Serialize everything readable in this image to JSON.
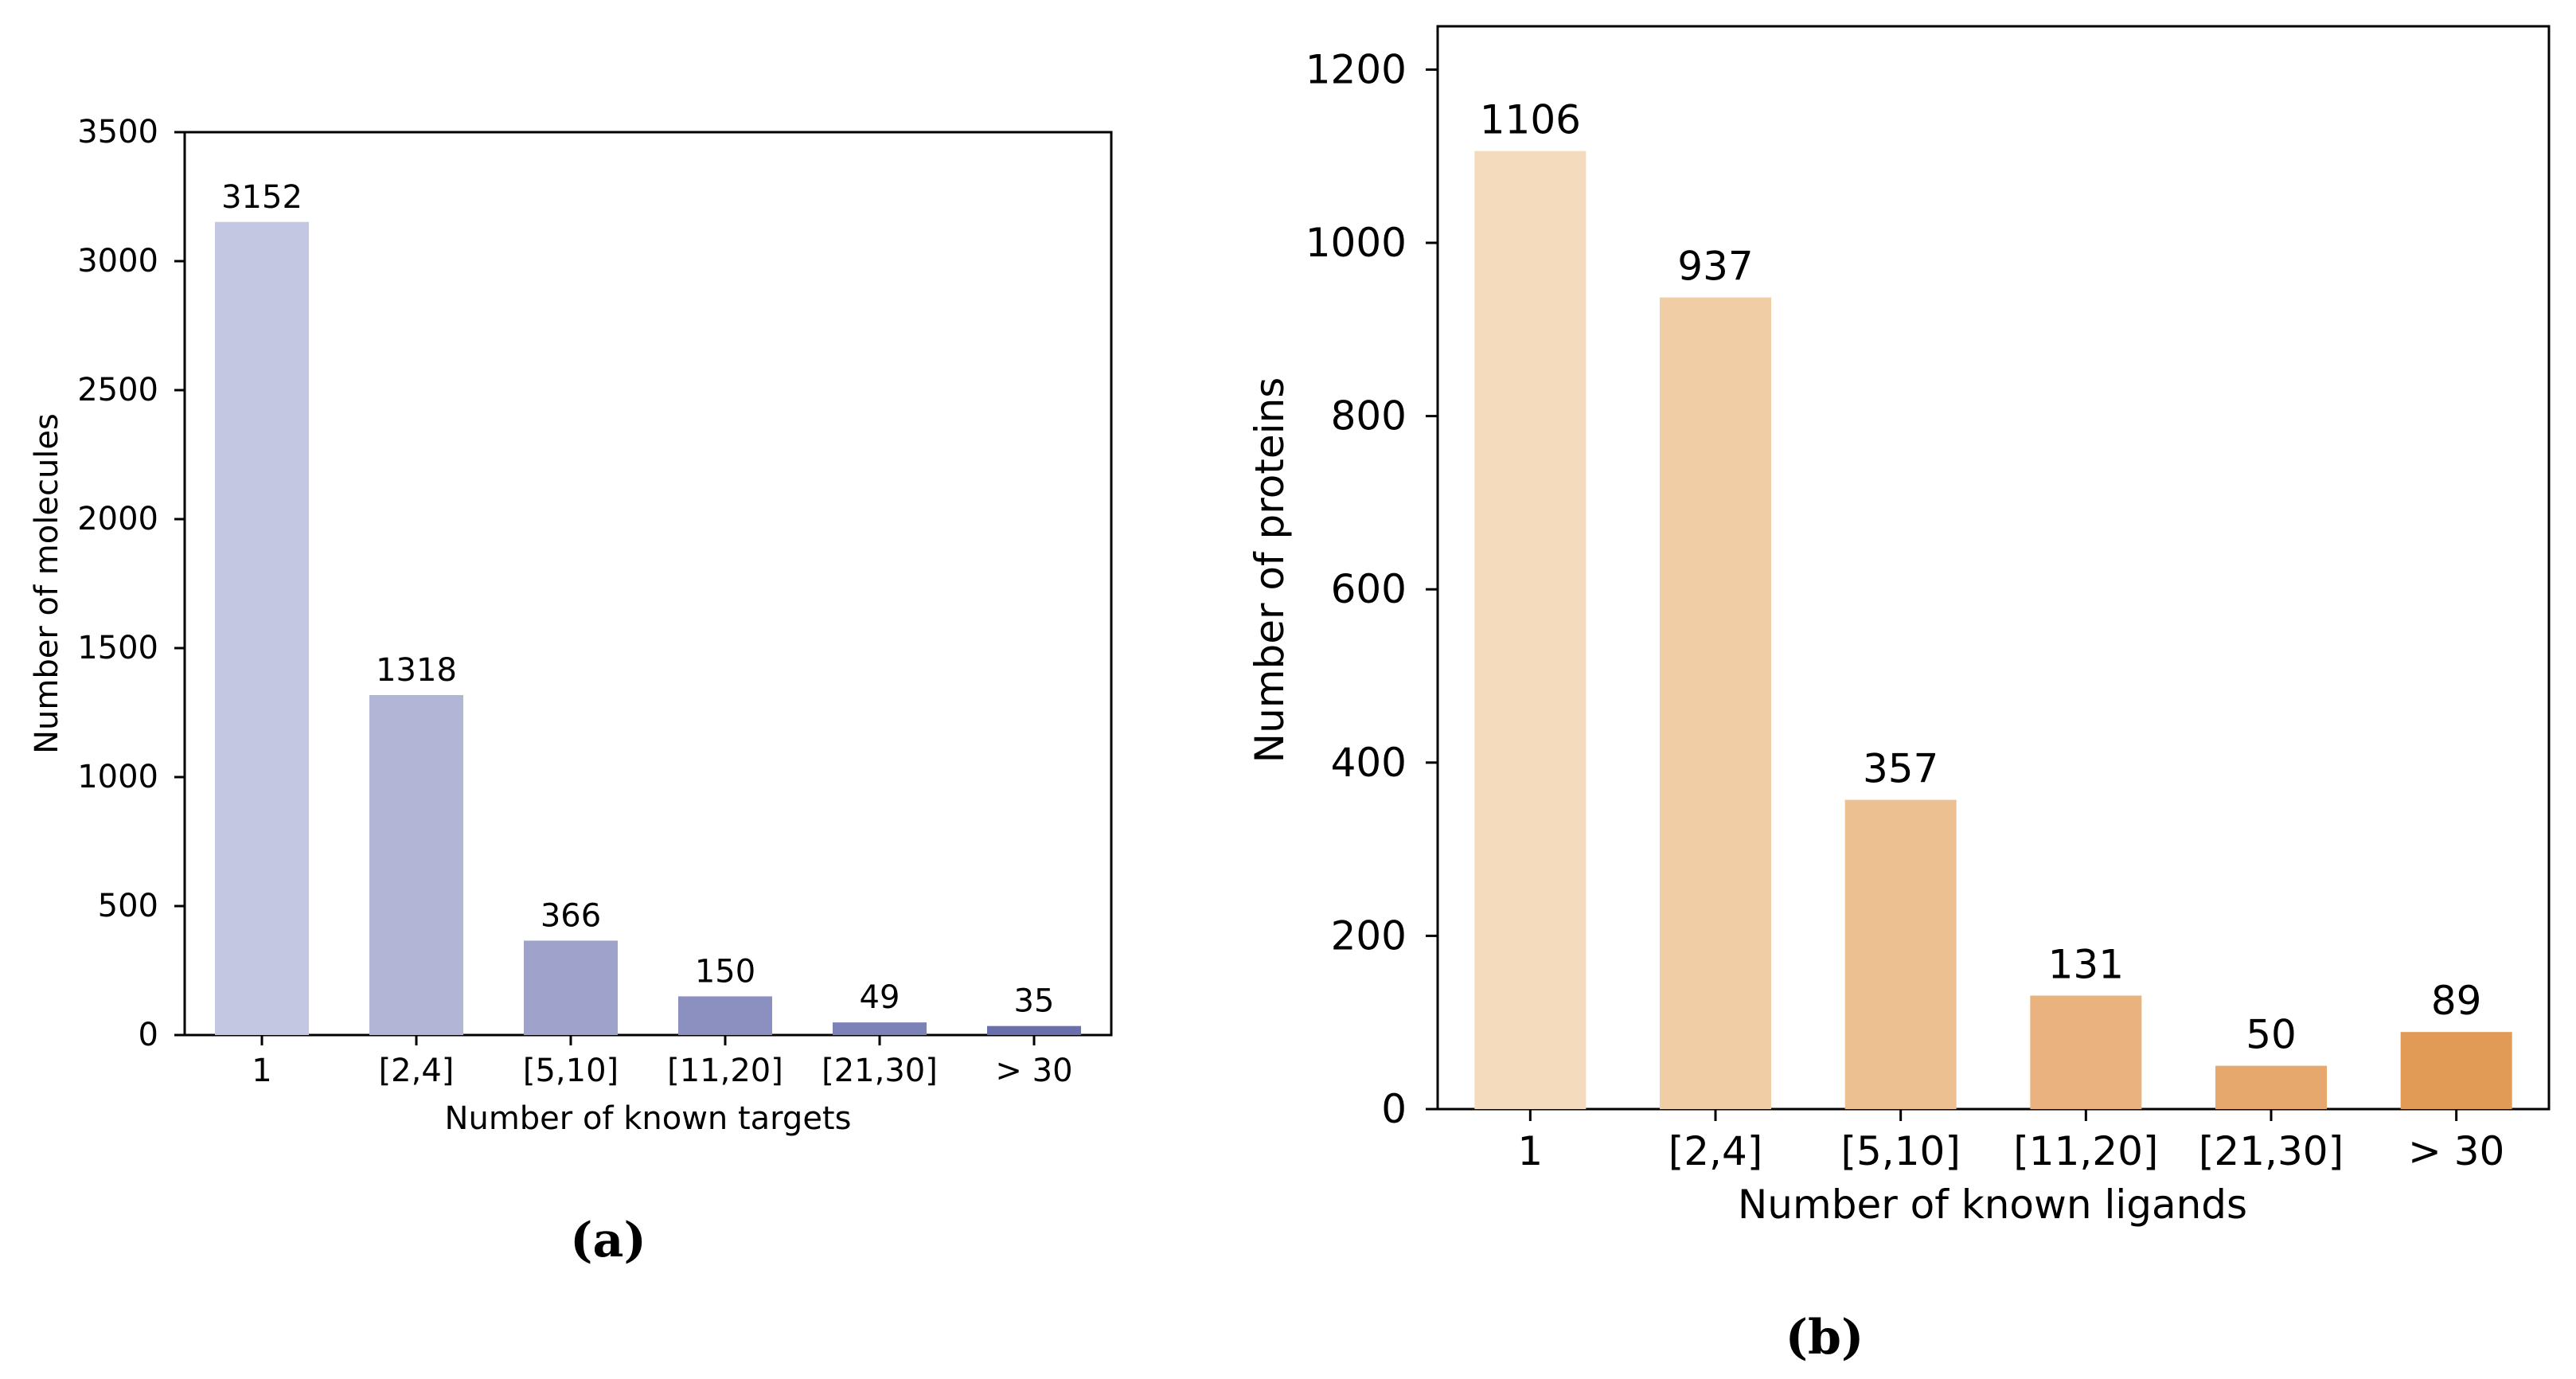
{
  "chart_data": [
    {
      "type": "bar",
      "panel_label": "(a)",
      "categories": [
        "1",
        "[2,4]",
        "[5,10]",
        "[11,20]",
        "[21,30]",
        "> 30"
      ],
      "values": [
        3152,
        1318,
        366,
        150,
        49,
        35
      ],
      "data_labels": [
        "3152",
        "1318",
        "366",
        "150",
        "49",
        "35"
      ],
      "xlabel": "Number of known targets",
      "ylabel": "Number of molecules",
      "ylim": [
        0,
        3500
      ],
      "yticks": [
        "0",
        "500",
        "1000",
        "1500",
        "2000",
        "2500",
        "3000",
        "3500"
      ],
      "ytick_values": [
        0,
        500,
        1000,
        1500,
        2000,
        2500,
        3000,
        3500
      ],
      "bar_colors": [
        "#c4c7e1",
        "#b2b5d6",
        "#9fa3cb",
        "#8b90c0",
        "#7c81b8",
        "#6a70ae"
      ],
      "grid": false,
      "legend": "none"
    },
    {
      "type": "bar",
      "panel_label": "(b)",
      "categories": [
        "1",
        "[2,4]",
        "[5,10]",
        "[11,20]",
        "[21,30]",
        "> 30"
      ],
      "values": [
        1106,
        937,
        357,
        131,
        50,
        89
      ],
      "data_labels": [
        "1106",
        "937",
        "357",
        "131",
        "50",
        "89"
      ],
      "xlabel": "Number of known ligands",
      "ylabel": "Number of proteins",
      "ylim": [
        0,
        1250
      ],
      "yticks": [
        "0",
        "200",
        "400",
        "600",
        "800",
        "1000",
        "1200"
      ],
      "ytick_values": [
        0,
        200,
        400,
        600,
        800,
        1000,
        1200
      ],
      "bar_colors": [
        "#f5dbbd",
        "#f1cda6",
        "#edc092",
        "#eab27f",
        "#e7a86e",
        "#e29b56"
      ],
      "grid": false,
      "legend": "none"
    }
  ]
}
